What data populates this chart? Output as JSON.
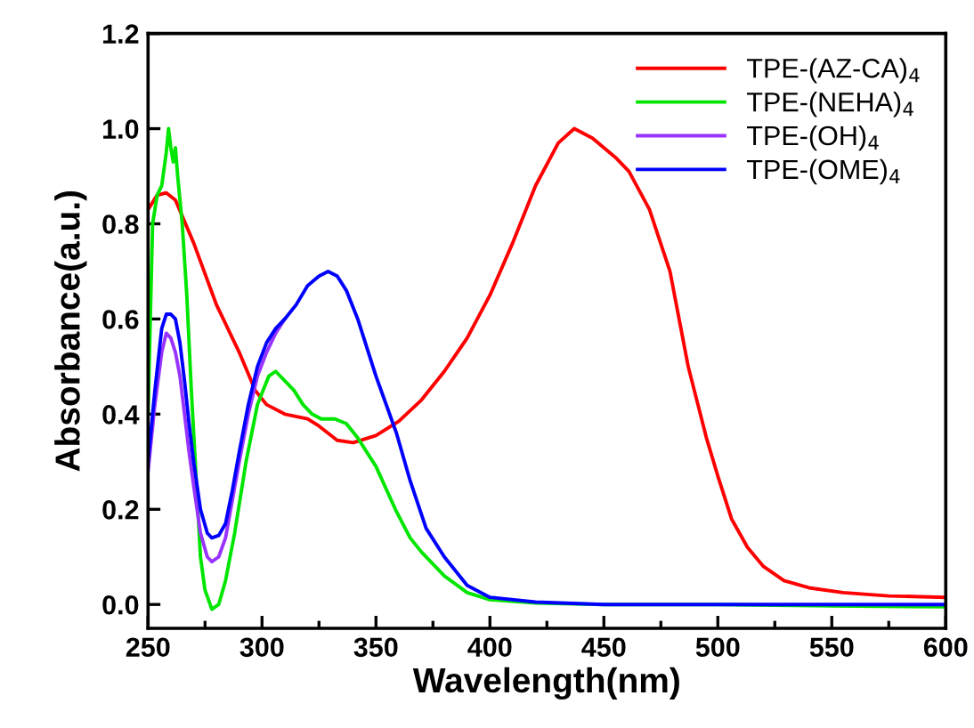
{
  "chart_data": {
    "type": "line",
    "xlabel": "Wavelength(nm)",
    "ylabel": "Absorbance(a.u.)",
    "xlim": [
      250,
      600
    ],
    "ylim": [
      -0.05,
      1.2
    ],
    "xticks": [
      250,
      {
        "value": 275,
        "label": null
      },
      300,
      {
        "value": 325,
        "label": null
      },
      350,
      {
        "value": 375,
        "label": null
      },
      400,
      {
        "value": 425,
        "label": null
      },
      450,
      {
        "value": 475,
        "label": null
      },
      500,
      {
        "value": 525,
        "label": null
      },
      550,
      {
        "value": 575,
        "label": null
      },
      600
    ],
    "yticks": [
      {
        "value": 0,
        "label": "0.0"
      },
      {
        "value": 0.2,
        "label": "0.2"
      },
      {
        "value": 0.4,
        "label": "0.4"
      },
      {
        "value": 0.6,
        "label": "0.6"
      },
      {
        "value": 0.8,
        "label": "0.8"
      },
      {
        "value": 1.0,
        "label": "1.0"
      },
      {
        "value": 1.2,
        "label": "1.2"
      }
    ],
    "grid": false,
    "legend": "top right",
    "marker": "none",
    "line_style": "solid",
    "series": [
      {
        "name": "TPE-(AZ-CA)$_{4}$",
        "color": "#ff0000",
        "x": [
          250,
          254,
          258,
          262,
          270,
          280,
          290,
          297,
          302,
          310,
          320,
          325,
          333,
          340,
          350,
          360,
          370,
          380,
          390,
          400,
          410,
          420,
          430,
          437,
          445,
          455,
          461,
          470,
          479,
          487,
          495,
          500,
          506,
          513,
          520,
          529,
          540,
          555,
          575,
          600
        ],
        "values": [
          0.83,
          0.86,
          0.865,
          0.85,
          0.76,
          0.63,
          0.53,
          0.45,
          0.42,
          0.4,
          0.39,
          0.375,
          0.345,
          0.34,
          0.355,
          0.385,
          0.43,
          0.49,
          0.56,
          0.65,
          0.76,
          0.88,
          0.97,
          1.0,
          0.98,
          0.94,
          0.91,
          0.83,
          0.7,
          0.5,
          0.35,
          0.27,
          0.18,
          0.12,
          0.08,
          0.05,
          0.035,
          0.025,
          0.018,
          0.015
        ]
      },
      {
        "name": "TPE-(NEHA)$_{4}$",
        "color": "#00e600",
        "x": [
          250,
          252,
          254,
          256,
          258,
          259,
          260,
          261,
          262,
          263,
          265,
          267,
          269,
          273,
          275,
          278,
          281,
          284,
          288,
          293,
          298,
          303,
          306,
          310,
          314,
          318,
          322,
          326,
          332,
          337,
          342,
          350,
          359,
          365,
          370,
          380,
          390,
          400,
          420,
          450,
          500,
          550,
          600
        ],
        "values": [
          0.4,
          0.8,
          0.86,
          0.88,
          0.95,
          1.0,
          0.96,
          0.93,
          0.96,
          0.9,
          0.8,
          0.65,
          0.45,
          0.1,
          0.03,
          -0.01,
          0.0,
          0.05,
          0.15,
          0.3,
          0.42,
          0.48,
          0.49,
          0.47,
          0.45,
          0.42,
          0.4,
          0.39,
          0.39,
          0.38,
          0.35,
          0.29,
          0.195,
          0.14,
          0.11,
          0.06,
          0.025,
          0.01,
          0.003,
          0.0,
          0.0,
          -0.003,
          -0.005
        ]
      },
      {
        "name": "TPE-(OH)$_{4}$",
        "color": "#9933ff",
        "x": [
          250,
          253,
          256,
          258,
          260,
          262,
          264,
          266,
          268,
          270,
          273,
          276,
          278,
          281,
          284,
          287,
          290,
          294,
          298,
          302,
          306,
          310
        ],
        "values": [
          0.28,
          0.42,
          0.53,
          0.57,
          0.56,
          0.53,
          0.48,
          0.4,
          0.32,
          0.25,
          0.15,
          0.1,
          0.09,
          0.1,
          0.14,
          0.22,
          0.3,
          0.4,
          0.48,
          0.53,
          0.57,
          0.6
        ]
      },
      {
        "name": "TPE-(OME)$_{4}$",
        "color": "#0000ff",
        "x": [
          250,
          253,
          256,
          258,
          260,
          262,
          264,
          266,
          268,
          270,
          273,
          276,
          278,
          281,
          284,
          287,
          290,
          294,
          298,
          302,
          306,
          310,
          315,
          320,
          325,
          329,
          333,
          337,
          342,
          350,
          359,
          365,
          372,
          380,
          390,
          400,
          420,
          450,
          500,
          550,
          600
        ],
        "values": [
          0.3,
          0.45,
          0.58,
          0.61,
          0.61,
          0.6,
          0.55,
          0.47,
          0.38,
          0.3,
          0.2,
          0.15,
          0.14,
          0.145,
          0.17,
          0.24,
          0.32,
          0.42,
          0.5,
          0.55,
          0.58,
          0.6,
          0.63,
          0.67,
          0.69,
          0.7,
          0.69,
          0.66,
          0.6,
          0.48,
          0.36,
          0.26,
          0.16,
          0.1,
          0.04,
          0.015,
          0.005,
          0.0,
          0.0,
          0.0,
          0.0
        ]
      }
    ]
  }
}
